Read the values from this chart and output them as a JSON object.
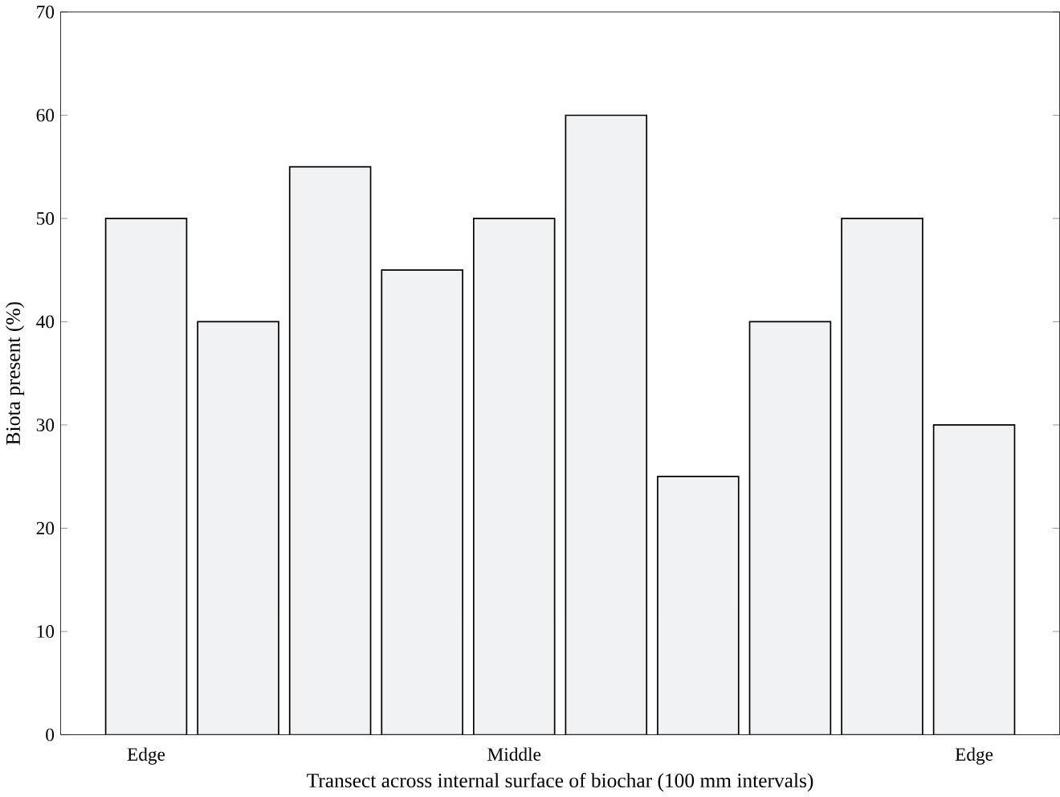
{
  "chart_data": {
    "type": "bar",
    "xlabel": "Transect across internal surface of biochar (100 mm intervals)",
    "ylabel": "Biota present (%)",
    "categories": [
      "Edge",
      null,
      null,
      null,
      "Middle",
      null,
      null,
      null,
      null,
      "Edge"
    ],
    "values": [
      50,
      40,
      55,
      45,
      50,
      60,
      25,
      40,
      50,
      30
    ],
    "color": "#f1f2f4",
    "ylim": [
      0,
      70
    ],
    "yticks": [
      0,
      10,
      20,
      30,
      40,
      50,
      60,
      70
    ],
    "grid": false
  }
}
